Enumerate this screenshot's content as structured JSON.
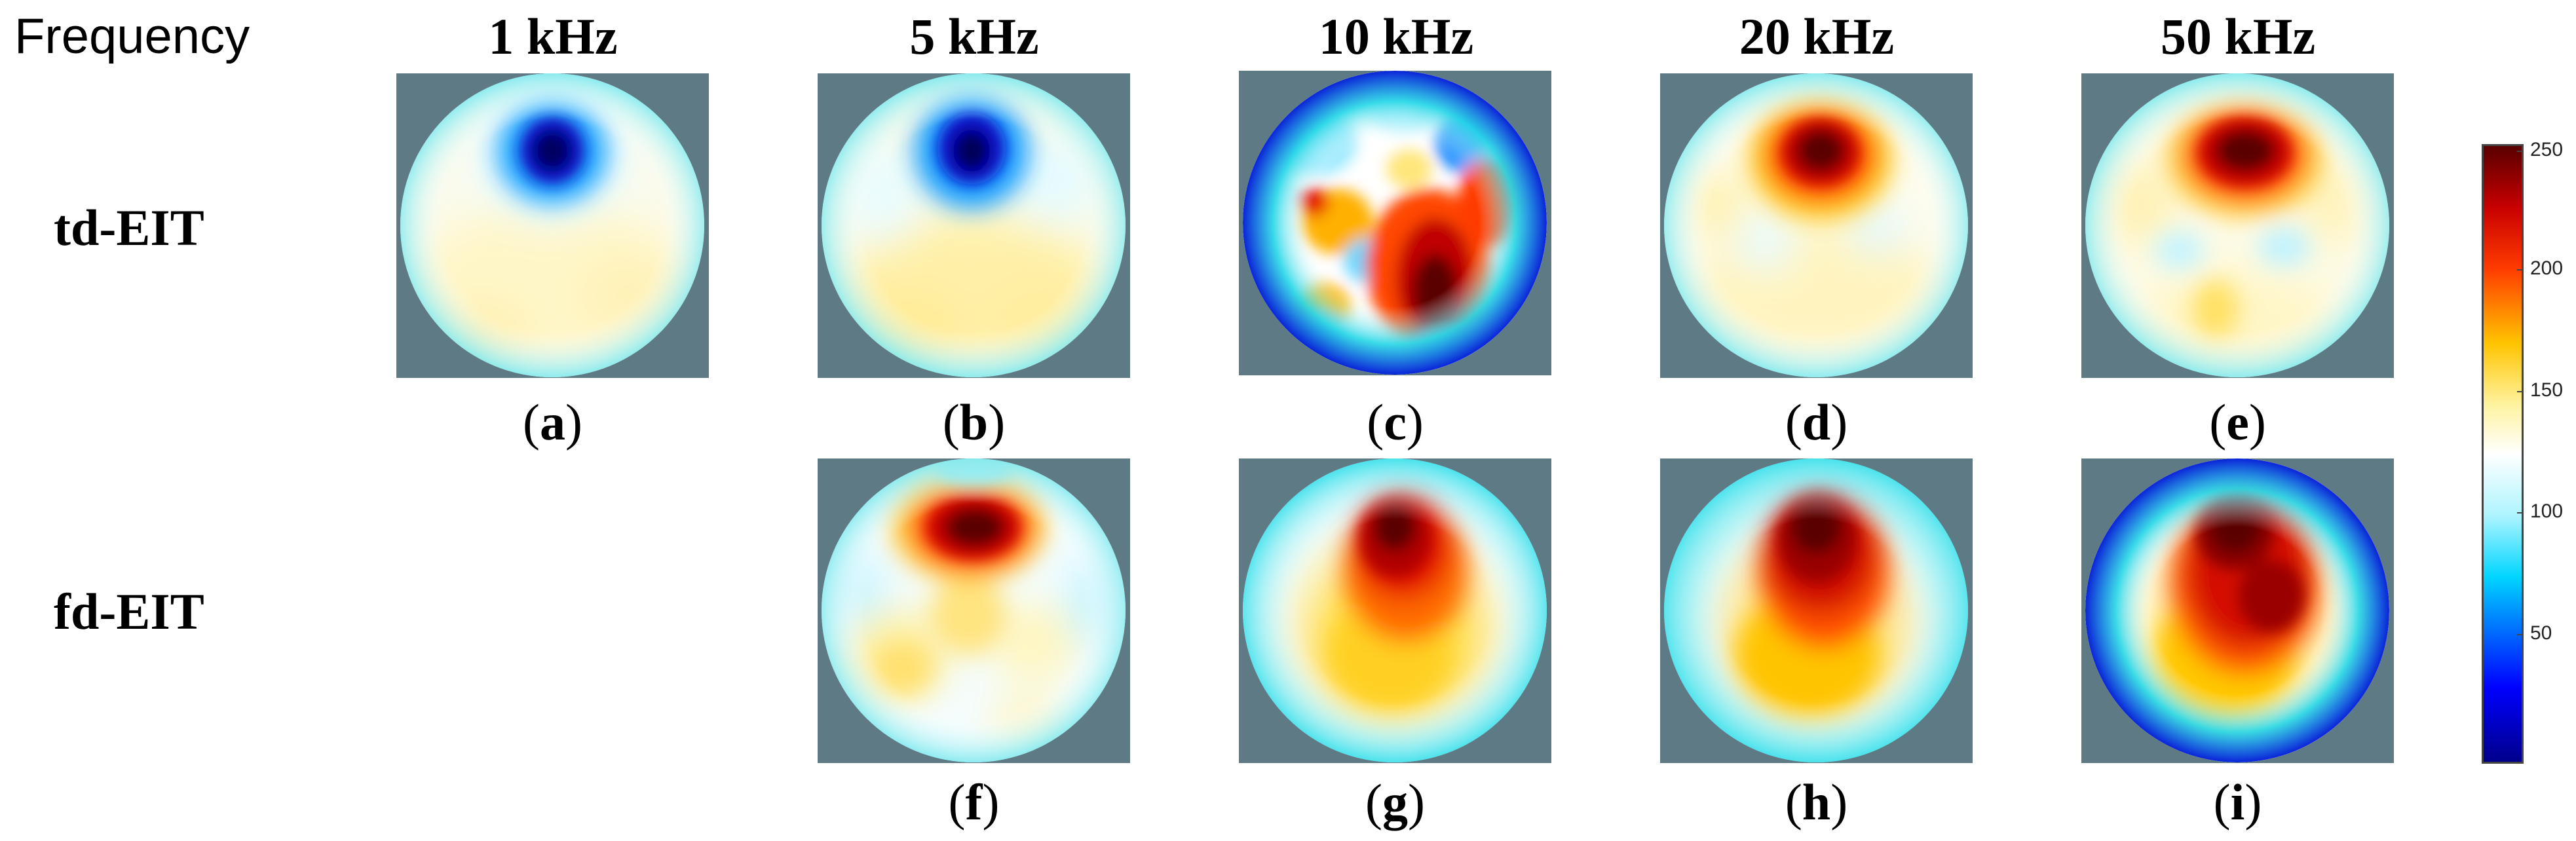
{
  "header": {
    "frequency_label": "Frequency",
    "columns": [
      "1 kHz",
      "5 kHz",
      "10 kHz",
      "20 kHz",
      "50 kHz"
    ]
  },
  "rows": {
    "td_label": "td-EIT",
    "fd_label": "fd-EIT"
  },
  "captions": {
    "a": "a",
    "b": "b",
    "c": "c",
    "d": "d",
    "e": "e",
    "f": "f",
    "g": "g",
    "h": "h",
    "i": "i"
  },
  "colorbar": {
    "ticks": [
      "250",
      "200",
      "150",
      "100",
      "50"
    ],
    "min_color": "#00008b",
    "max_color": "#7f0000"
  },
  "colors": {
    "background_gray": "#5d7a85"
  }
}
